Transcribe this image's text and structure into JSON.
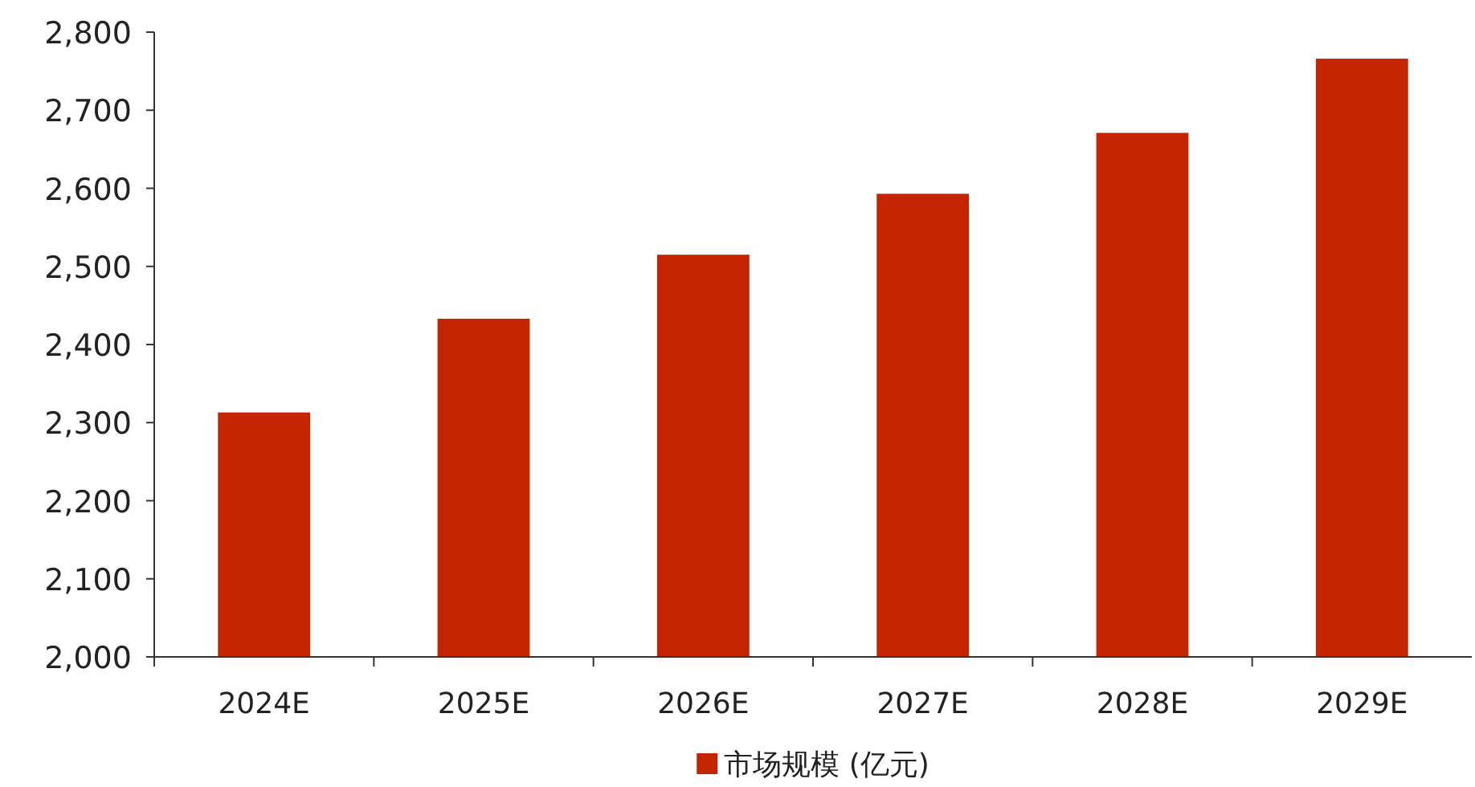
{
  "chart_data": {
    "type": "bar",
    "categories": [
      "2024E",
      "2025E",
      "2026E",
      "2027E",
      "2028E",
      "2029E"
    ],
    "series": [
      {
        "name": "市场规模 (亿元)",
        "color": "#c52400",
        "values": [
          2313,
          2433,
          2515,
          2593,
          2671,
          2766
        ]
      }
    ],
    "ylim": [
      2000,
      2800
    ],
    "yticks": [
      {
        "value": 2000,
        "label": "2,000"
      },
      {
        "value": 2100,
        "label": "2,100"
      },
      {
        "value": 2200,
        "label": "2,200"
      },
      {
        "value": 2300,
        "label": "2,300"
      },
      {
        "value": 2400,
        "label": "2,400"
      },
      {
        "value": 2500,
        "label": "2,500"
      },
      {
        "value": 2600,
        "label": "2,600"
      },
      {
        "value": 2700,
        "label": "2,700"
      },
      {
        "value": 2800,
        "label": "2,800"
      }
    ],
    "grid": false,
    "legend": "bottom"
  }
}
